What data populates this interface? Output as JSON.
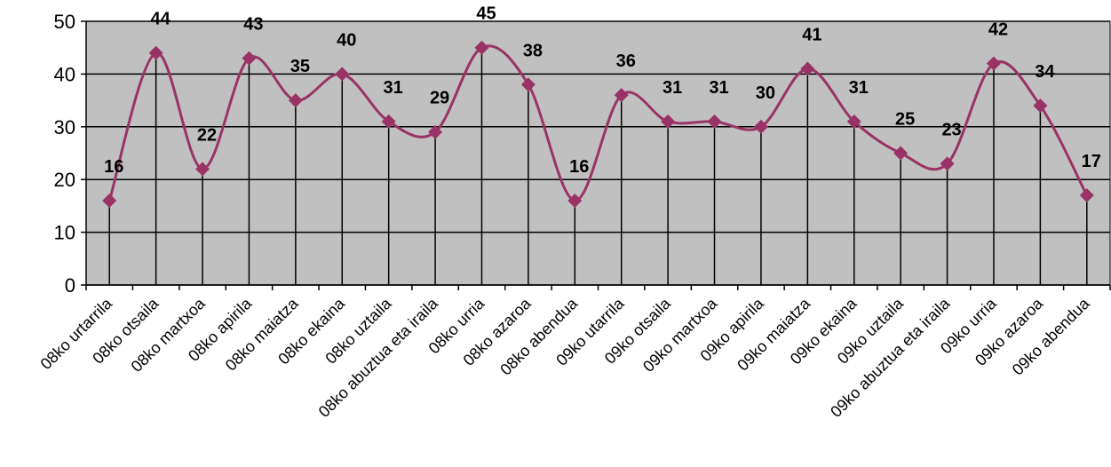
{
  "chart_data": {
    "type": "line",
    "categories": [
      "08ko urtarrila",
      "08ko otsaila",
      "08ko martxoa",
      "08ko apirila",
      "08ko maiatza",
      "08ko ekaina",
      "08ko uztaila",
      "08ko abuztua eta iraila",
      "08ko urria",
      "08ko azaroa",
      "08ko abendua",
      "09ko utarrila",
      "09ko otsaila",
      "09ko martxoa",
      "09ko apirila",
      "09ko maiatza",
      "09ko ekaina",
      "09ko uztaila",
      "09ko abuztua eta iraila",
      "09ko urria",
      "09ko azaroa",
      "09ko abendua"
    ],
    "series": [
      {
        "values": [
          16,
          44,
          22,
          43,
          35,
          40,
          31,
          29,
          45,
          38,
          16,
          36,
          31,
          31,
          30,
          41,
          31,
          25,
          23,
          42,
          34,
          17
        ]
      }
    ],
    "ylim": [
      0,
      50
    ],
    "yticks": [
      "0",
      "10",
      "20",
      "30",
      "40",
      "50"
    ],
    "grid": true,
    "drop_lines": true,
    "smooth": true,
    "marker": "diamond",
    "colors": {
      "line": "#993366",
      "plot_bg": "#c0c0c0",
      "grid": "#000000"
    }
  }
}
